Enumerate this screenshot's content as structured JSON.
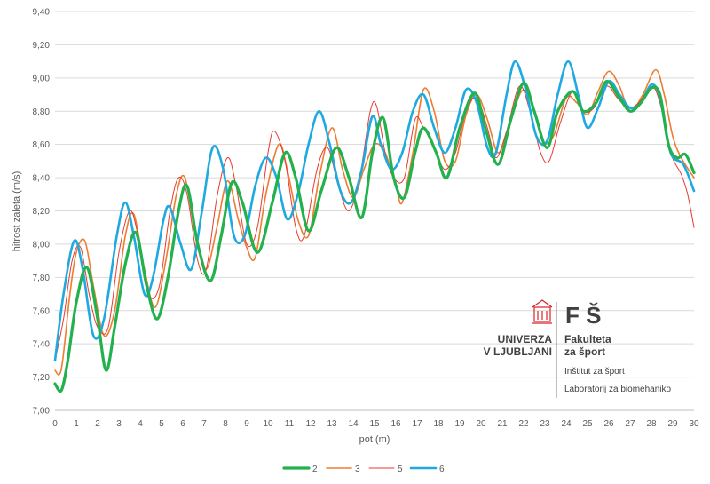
{
  "chart_data": {
    "type": "line",
    "xlabel": "pot (m)",
    "ylabel": "hitrost zaleta (m/s)",
    "xlim": [
      0,
      30
    ],
    "ylim": [
      7.0,
      9.4
    ],
    "x_ticks": [
      "0",
      "1",
      "2",
      "3",
      "4",
      "5",
      "6",
      "7",
      "8",
      "9",
      "10",
      "11",
      "12",
      "13",
      "14",
      "15",
      "16",
      "17",
      "18",
      "19",
      "20",
      "21",
      "22",
      "23",
      "24",
      "25",
      "26",
      "27",
      "28",
      "29",
      "30"
    ],
    "y_ticks": [
      "7,00",
      "7,20",
      "7,40",
      "7,60",
      "7,80",
      "8,00",
      "8,20",
      "8,40",
      "8,60",
      "8,80",
      "9,00",
      "9,20",
      "9,40"
    ],
    "grid": "horizontal",
    "legend_position": "bottom",
    "series": [
      {
        "name": "2",
        "color": "#22b14c",
        "points": [
          [
            0,
            7.16
          ],
          [
            0.3,
            7.12
          ],
          [
            0.6,
            7.3
          ],
          [
            1.0,
            7.65
          ],
          [
            1.5,
            7.86
          ],
          [
            2.0,
            7.55
          ],
          [
            2.4,
            7.24
          ],
          [
            2.8,
            7.5
          ],
          [
            3.3,
            7.88
          ],
          [
            3.8,
            8.07
          ],
          [
            4.3,
            7.75
          ],
          [
            4.8,
            7.55
          ],
          [
            5.3,
            7.8
          ],
          [
            5.8,
            8.2
          ],
          [
            6.2,
            8.35
          ],
          [
            6.7,
            8.0
          ],
          [
            7.3,
            7.78
          ],
          [
            7.8,
            8.05
          ],
          [
            8.3,
            8.37
          ],
          [
            8.8,
            8.25
          ],
          [
            9.5,
            7.95
          ],
          [
            10.2,
            8.25
          ],
          [
            10.8,
            8.55
          ],
          [
            11.3,
            8.4
          ],
          [
            11.9,
            8.08
          ],
          [
            12.5,
            8.32
          ],
          [
            13.2,
            8.58
          ],
          [
            13.8,
            8.4
          ],
          [
            14.4,
            8.16
          ],
          [
            14.9,
            8.55
          ],
          [
            15.4,
            8.76
          ],
          [
            15.9,
            8.4
          ],
          [
            16.4,
            8.28
          ],
          [
            16.9,
            8.55
          ],
          [
            17.3,
            8.7
          ],
          [
            17.9,
            8.55
          ],
          [
            18.4,
            8.4
          ],
          [
            19.0,
            8.7
          ],
          [
            19.7,
            8.91
          ],
          [
            20.2,
            8.7
          ],
          [
            20.8,
            8.48
          ],
          [
            21.4,
            8.75
          ],
          [
            22.0,
            8.97
          ],
          [
            22.5,
            8.8
          ],
          [
            23.1,
            8.58
          ],
          [
            23.6,
            8.8
          ],
          [
            24.3,
            8.92
          ],
          [
            24.8,
            8.8
          ],
          [
            25.4,
            8.85
          ],
          [
            25.9,
            8.98
          ],
          [
            26.5,
            8.88
          ],
          [
            27.0,
            8.8
          ],
          [
            27.5,
            8.85
          ],
          [
            28.0,
            8.94
          ],
          [
            28.4,
            8.9
          ],
          [
            28.8,
            8.6
          ],
          [
            29.2,
            8.52
          ],
          [
            29.6,
            8.54
          ],
          [
            30.0,
            8.43
          ]
        ]
      },
      {
        "name": "3",
        "color": "#ed7d31",
        "points": [
          [
            0,
            7.24
          ],
          [
            0.3,
            7.25
          ],
          [
            0.7,
            7.7
          ],
          [
            1.0,
            7.95
          ],
          [
            1.4,
            8.02
          ],
          [
            1.8,
            7.75
          ],
          [
            2.3,
            7.45
          ],
          [
            2.8,
            7.6
          ],
          [
            3.3,
            8.05
          ],
          [
            3.7,
            8.18
          ],
          [
            4.2,
            7.85
          ],
          [
            4.7,
            7.62
          ],
          [
            5.2,
            7.9
          ],
          [
            5.7,
            8.3
          ],
          [
            6.1,
            8.4
          ],
          [
            6.6,
            8.05
          ],
          [
            7.1,
            7.85
          ],
          [
            7.6,
            8.1
          ],
          [
            8.1,
            8.38
          ],
          [
            8.6,
            8.15
          ],
          [
            9.0,
            7.98
          ],
          [
            9.4,
            7.92
          ],
          [
            9.9,
            8.3
          ],
          [
            10.5,
            8.6
          ],
          [
            10.9,
            8.45
          ],
          [
            11.4,
            8.15
          ],
          [
            11.9,
            8.05
          ],
          [
            12.4,
            8.4
          ],
          [
            13.0,
            8.7
          ],
          [
            13.5,
            8.45
          ],
          [
            14.0,
            8.28
          ],
          [
            14.5,
            8.45
          ],
          [
            15.0,
            8.6
          ],
          [
            15.5,
            8.55
          ],
          [
            16.0,
            8.35
          ],
          [
            16.3,
            8.25
          ],
          [
            16.8,
            8.55
          ],
          [
            17.3,
            8.93
          ],
          [
            17.8,
            8.8
          ],
          [
            18.3,
            8.5
          ],
          [
            18.8,
            8.5
          ],
          [
            19.3,
            8.78
          ],
          [
            19.8,
            8.9
          ],
          [
            20.3,
            8.75
          ],
          [
            20.8,
            8.55
          ],
          [
            21.3,
            8.7
          ],
          [
            21.9,
            8.92
          ],
          [
            22.4,
            8.85
          ],
          [
            22.9,
            8.62
          ],
          [
            23.4,
            8.65
          ],
          [
            24.0,
            8.88
          ],
          [
            24.5,
            8.85
          ],
          [
            25.0,
            8.78
          ],
          [
            25.5,
            8.92
          ],
          [
            26.0,
            9.04
          ],
          [
            26.5,
            8.95
          ],
          [
            27.0,
            8.8
          ],
          [
            27.6,
            8.9
          ],
          [
            28.2,
            9.05
          ],
          [
            28.6,
            8.9
          ],
          [
            29.0,
            8.65
          ],
          [
            29.4,
            8.52
          ],
          [
            30.0,
            8.4
          ]
        ]
      },
      {
        "name": "5",
        "color": "#e8392f",
        "points": [
          [
            0,
            7.3
          ],
          [
            0.4,
            7.55
          ],
          [
            0.8,
            7.9
          ],
          [
            1.2,
            7.98
          ],
          [
            1.6,
            7.7
          ],
          [
            2.0,
            7.5
          ],
          [
            2.5,
            7.5
          ],
          [
            3.0,
            7.95
          ],
          [
            3.5,
            8.2
          ],
          [
            3.9,
            8.05
          ],
          [
            4.4,
            7.7
          ],
          [
            4.9,
            7.75
          ],
          [
            5.4,
            8.2
          ],
          [
            5.8,
            8.4
          ],
          [
            6.2,
            8.3
          ],
          [
            6.7,
            7.9
          ],
          [
            7.1,
            7.85
          ],
          [
            7.6,
            8.28
          ],
          [
            8.1,
            8.52
          ],
          [
            8.5,
            8.35
          ],
          [
            9.0,
            8.0
          ],
          [
            9.5,
            8.1
          ],
          [
            10.0,
            8.55
          ],
          [
            10.3,
            8.68
          ],
          [
            10.8,
            8.5
          ],
          [
            11.3,
            8.1
          ],
          [
            11.7,
            8.05
          ],
          [
            12.3,
            8.45
          ],
          [
            12.8,
            8.58
          ],
          [
            13.3,
            8.35
          ],
          [
            13.8,
            8.2
          ],
          [
            14.3,
            8.4
          ],
          [
            14.8,
            8.8
          ],
          [
            15.1,
            8.83
          ],
          [
            15.5,
            8.55
          ],
          [
            15.9,
            8.4
          ],
          [
            16.4,
            8.4
          ],
          [
            16.9,
            8.75
          ],
          [
            17.3,
            8.7
          ],
          [
            17.8,
            8.58
          ],
          [
            18.3,
            8.45
          ],
          [
            18.8,
            8.55
          ],
          [
            19.3,
            8.8
          ],
          [
            19.8,
            8.88
          ],
          [
            20.3,
            8.7
          ],
          [
            20.7,
            8.52
          ],
          [
            21.2,
            8.68
          ],
          [
            21.8,
            8.95
          ],
          [
            22.3,
            8.8
          ],
          [
            22.8,
            8.55
          ],
          [
            23.2,
            8.5
          ],
          [
            23.7,
            8.72
          ],
          [
            24.3,
            8.92
          ],
          [
            24.8,
            8.8
          ],
          [
            25.3,
            8.82
          ],
          [
            25.9,
            8.95
          ],
          [
            26.4,
            8.88
          ],
          [
            26.9,
            8.82
          ],
          [
            27.4,
            8.85
          ],
          [
            28.0,
            8.95
          ],
          [
            28.4,
            8.85
          ],
          [
            28.9,
            8.55
          ],
          [
            29.4,
            8.42
          ],
          [
            29.7,
            8.3
          ],
          [
            30.0,
            8.1
          ]
        ]
      },
      {
        "name": "6",
        "color": "#1fa9e1",
        "points": [
          [
            0,
            7.3
          ],
          [
            0.4,
            7.7
          ],
          [
            0.9,
            8.02
          ],
          [
            1.3,
            7.85
          ],
          [
            1.8,
            7.45
          ],
          [
            2.3,
            7.55
          ],
          [
            2.9,
            8.05
          ],
          [
            3.3,
            8.25
          ],
          [
            3.7,
            8.05
          ],
          [
            4.2,
            7.7
          ],
          [
            4.6,
            7.8
          ],
          [
            5.1,
            8.15
          ],
          [
            5.4,
            8.22
          ],
          [
            5.9,
            8.0
          ],
          [
            6.4,
            7.85
          ],
          [
            6.9,
            8.2
          ],
          [
            7.4,
            8.58
          ],
          [
            7.9,
            8.45
          ],
          [
            8.4,
            8.05
          ],
          [
            8.9,
            8.05
          ],
          [
            9.4,
            8.35
          ],
          [
            9.9,
            8.52
          ],
          [
            10.4,
            8.4
          ],
          [
            10.9,
            8.15
          ],
          [
            11.4,
            8.3
          ],
          [
            11.9,
            8.6
          ],
          [
            12.4,
            8.8
          ],
          [
            12.9,
            8.6
          ],
          [
            13.4,
            8.32
          ],
          [
            13.9,
            8.25
          ],
          [
            14.4,
            8.45
          ],
          [
            14.9,
            8.77
          ],
          [
            15.3,
            8.6
          ],
          [
            15.8,
            8.45
          ],
          [
            16.3,
            8.55
          ],
          [
            16.8,
            8.8
          ],
          [
            17.3,
            8.9
          ],
          [
            17.8,
            8.7
          ],
          [
            18.3,
            8.55
          ],
          [
            18.8,
            8.7
          ],
          [
            19.3,
            8.93
          ],
          [
            19.8,
            8.85
          ],
          [
            20.3,
            8.58
          ],
          [
            20.7,
            8.55
          ],
          [
            21.2,
            8.9
          ],
          [
            21.6,
            9.1
          ],
          [
            22.1,
            8.93
          ],
          [
            22.6,
            8.65
          ],
          [
            23.1,
            8.62
          ],
          [
            23.6,
            8.9
          ],
          [
            24.1,
            9.1
          ],
          [
            24.6,
            8.88
          ],
          [
            25.0,
            8.7
          ],
          [
            25.5,
            8.82
          ],
          [
            26.0,
            8.98
          ],
          [
            26.5,
            8.9
          ],
          [
            27.0,
            8.82
          ],
          [
            27.5,
            8.85
          ],
          [
            28.0,
            8.96
          ],
          [
            28.4,
            8.88
          ],
          [
            28.9,
            8.55
          ],
          [
            29.5,
            8.48
          ],
          [
            30.0,
            8.32
          ]
        ]
      }
    ]
  },
  "logo": {
    "initials": "F Š",
    "university_line1": "UNIVERZA",
    "university_line2": "V LJUBLJANI",
    "faculty_line1": "Fakulteta",
    "faculty_line2": "za šport",
    "institute": "Inštitut za šport",
    "laboratory": "Laboratorij za biomehaniko",
    "accent_color": "#d9222a"
  }
}
